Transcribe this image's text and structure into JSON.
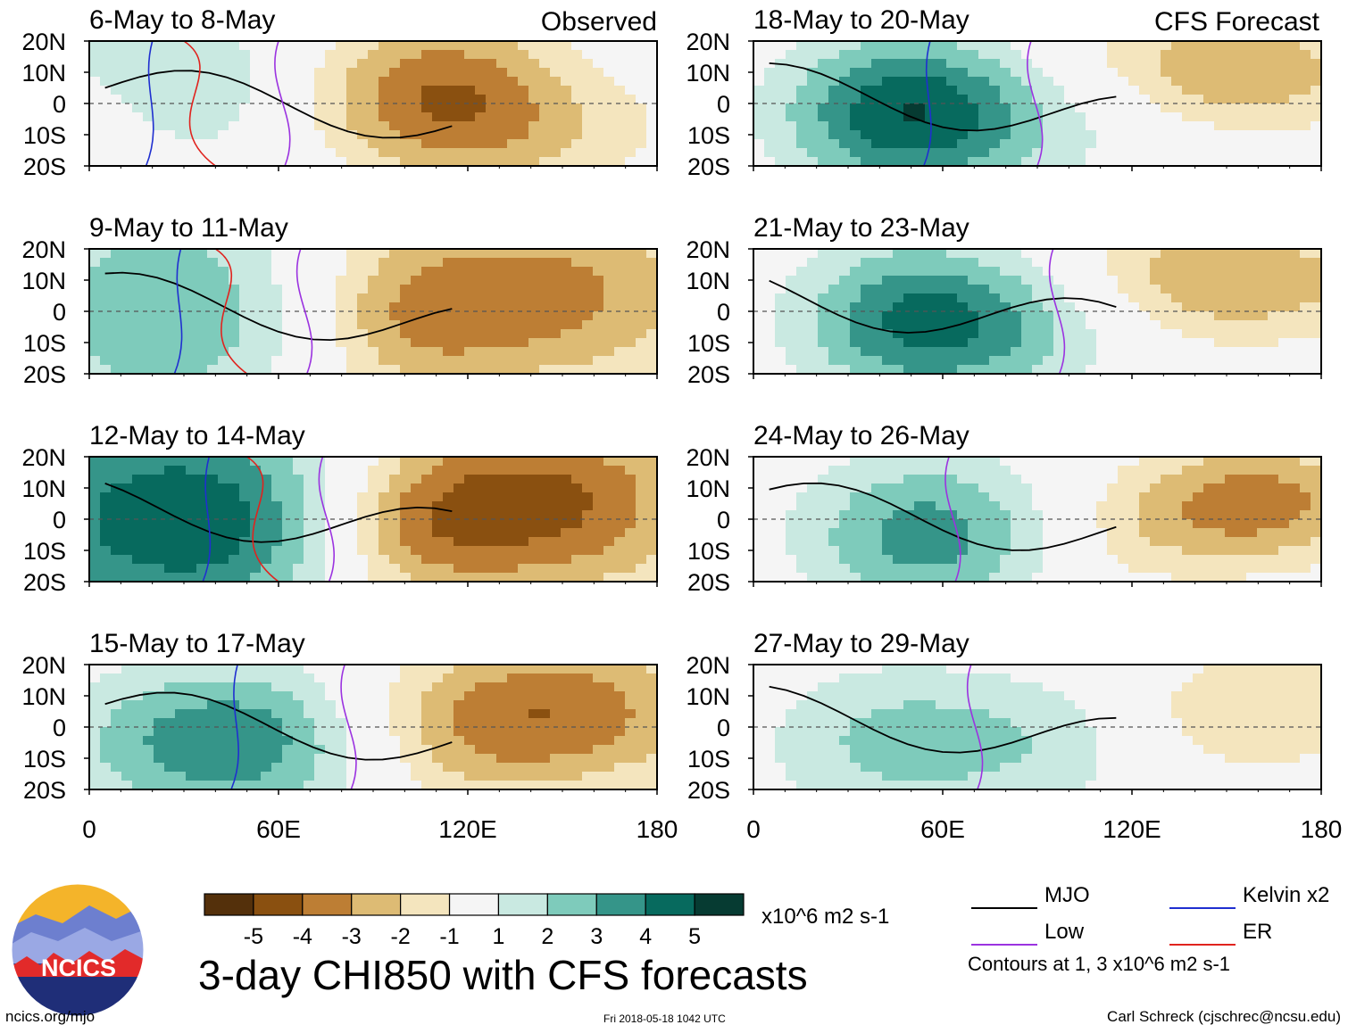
{
  "title": "3-day CHI850 with CFS forecasts",
  "units": "x10^6 m2 s-1",
  "source_link": "ncics.org/mjo",
  "timestamp": "Fri 2018-05-18 1042 UTC",
  "author": "Carl Schreck (cjschrec@ncsu.edu)",
  "logo_text": "NCICS",
  "column_labels": {
    "left": "Observed",
    "right": "CFS Forecast"
  },
  "legend": {
    "items": [
      {
        "label": "MJO",
        "color": "#000000"
      },
      {
        "label": "Kelvin x2",
        "color": "#1f2fd0"
      },
      {
        "label": "Low",
        "color": "#9b33e0"
      },
      {
        "label": "ER",
        "color": "#e0231e"
      }
    ],
    "contour_note": "Contours at 1, 3 x10^6 m2 s-1"
  },
  "colors": {
    "-6": "#54300b",
    "-5": "#8a5010",
    "-4": "#bd7e34",
    "-3": "#ddbb74",
    "-2": "#f4e5be",
    "0": "#f5f5f5",
    "1": "#c9e9e1",
    "2": "#7ecbbb",
    "3": "#359589",
    "4": "#076a5e",
    "5": "#063b32"
  },
  "chart_data": {
    "type": "heatmap",
    "variable": "850-hPa velocity potential anomaly (CHI850)",
    "colorbar": {
      "ticks": [
        "-5",
        "-4",
        "-3",
        "-2",
        "-1",
        "1",
        "2",
        "3",
        "4",
        "5"
      ],
      "levels": [
        -6,
        -5,
        -4,
        -3,
        -2,
        -1,
        1,
        2,
        3,
        4,
        5,
        6
      ]
    },
    "x_axis": {
      "range": [
        0,
        180
      ],
      "ticks": [
        "0",
        "60E",
        "120E",
        "180"
      ],
      "tick_values": [
        0,
        60,
        120,
        180
      ]
    },
    "y_axis": {
      "range": [
        -20,
        20
      ],
      "ticks": [
        "20N",
        "10N",
        "0",
        "10S",
        "20S"
      ],
      "tick_values": [
        20,
        10,
        0,
        -10,
        -20
      ]
    },
    "panels": [
      {
        "title": "6-May to 8-May",
        "type": "Observed",
        "blobs": [
          [
            25,
            17,
            40,
            20,
            1.5
          ],
          [
            110,
            5,
            40,
            25,
            -3.5
          ],
          [
            140,
            -10,
            50,
            20,
            -1.5
          ],
          [
            40,
            -5,
            30,
            20,
            1
          ]
        ]
      },
      {
        "title": "9-May to 11-May",
        "type": "Observed",
        "blobs": [
          [
            25,
            0,
            50,
            35,
            3
          ],
          [
            140,
            5,
            60,
            30,
            -3.5
          ],
          [
            100,
            -5,
            30,
            25,
            -1.5
          ]
        ]
      },
      {
        "title": "12-May to 14-May",
        "type": "Observed",
        "blobs": [
          [
            30,
            0,
            60,
            35,
            5
          ],
          [
            140,
            5,
            55,
            30,
            -4.5
          ],
          [
            100,
            -5,
            30,
            25,
            -2
          ]
        ]
      },
      {
        "title": "15-May to 17-May",
        "type": "Observed",
        "blobs": [
          [
            45,
            -5,
            50,
            25,
            4
          ],
          [
            150,
            5,
            50,
            25,
            -3.5
          ],
          [
            110,
            -5,
            40,
            25,
            -1.5
          ]
        ]
      },
      {
        "title": "18-May to 20-May",
        "type": "CFS Forecast",
        "blobs": [
          [
            50,
            -3,
            40,
            25,
            5
          ],
          [
            150,
            10,
            50,
            20,
            -3
          ],
          [
            110,
            -5,
            40,
            20,
            1
          ]
        ]
      },
      {
        "title": "21-May to 23-May",
        "type": "CFS Forecast",
        "blobs": [
          [
            55,
            -3,
            40,
            25,
            4.5
          ],
          [
            150,
            10,
            50,
            20,
            -3
          ],
          [
            100,
            -5,
            30,
            20,
            1
          ]
        ]
      },
      {
        "title": "24-May to 26-May",
        "type": "CFS Forecast",
        "blobs": [
          [
            55,
            -5,
            40,
            25,
            3.5
          ],
          [
            160,
            5,
            40,
            20,
            -3.5
          ],
          [
            120,
            -5,
            30,
            20,
            -1
          ]
        ]
      },
      {
        "title": "27-May to 29-May",
        "type": "CFS Forecast",
        "blobs": [
          [
            50,
            -5,
            45,
            25,
            2.5
          ],
          [
            160,
            5,
            40,
            20,
            -2
          ],
          [
            100,
            -5,
            30,
            20,
            1
          ]
        ]
      }
    ]
  }
}
